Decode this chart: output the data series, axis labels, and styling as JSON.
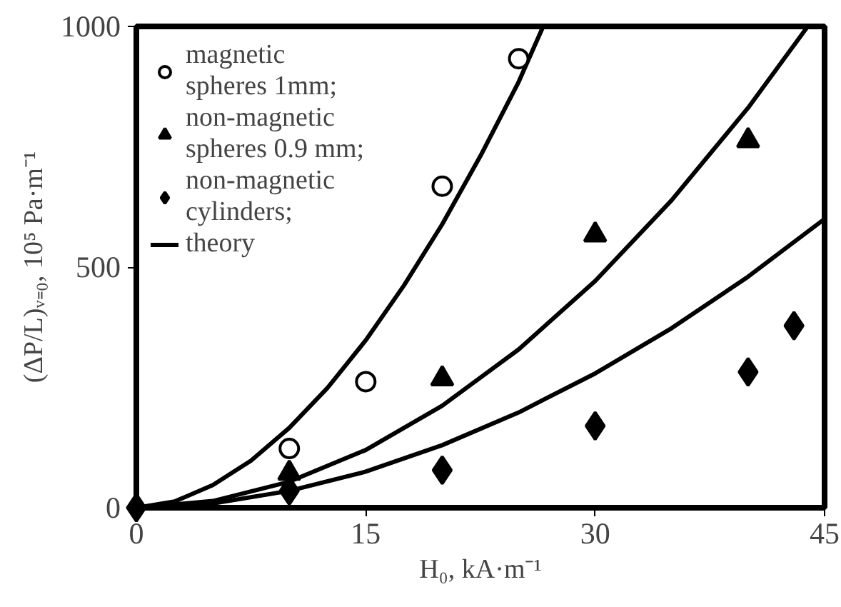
{
  "chart_data": {
    "type": "scatter",
    "xlabel": "H₀, kA·m⁻¹",
    "ylabel": "(ΔP/L)ᵥ₌₀, 10⁵ Pa·m⁻¹",
    "xlim": [
      0,
      45
    ],
    "ylim": [
      0,
      1000
    ],
    "xticks": [
      0,
      15,
      30,
      45
    ],
    "yticks": [
      0,
      500,
      1000
    ],
    "grid": false,
    "legend": "top left",
    "series": [
      {
        "name": "magnetic\nspheres 1mm;",
        "color": "#000000",
        "marker": "circle",
        "x": [
          10,
          15,
          20,
          25
        ],
        "values": [
          123,
          262,
          668,
          933
        ]
      },
      {
        "name": "non-magnetic\nspheres 0.9 mm;",
        "color": "#000000",
        "marker": "triangle",
        "x": [
          10,
          20,
          30,
          40
        ],
        "values": [
          72,
          268,
          567,
          763
        ]
      },
      {
        "name": "non-magnetic\ncylinders;",
        "color": "#000000",
        "marker": "diamond",
        "x": [
          0,
          10,
          20,
          30,
          40,
          43
        ],
        "values": [
          0,
          35,
          78,
          170,
          282,
          378
        ]
      },
      {
        "name": "theory",
        "type": "line",
        "color": "#000000",
        "marker": "none",
        "line_style": "solid",
        "x": [
          0,
          2.5,
          5,
          7.5,
          10,
          12.5,
          15,
          17.5,
          20,
          22.5,
          25,
          26.6
        ],
        "values": [
          0,
          13,
          47,
          98,
          166,
          249,
          348,
          462,
          589,
          731,
          885,
          1000
        ]
      },
      {
        "type": "line",
        "color": "#000000",
        "marker": "none",
        "line_style": "solid",
        "x": [
          0,
          5,
          10,
          15,
          20,
          25,
          30,
          35,
          40,
          43.9
        ],
        "values": [
          0,
          14,
          54,
          120,
          212,
          329,
          471,
          639,
          831,
          1000
        ]
      },
      {
        "type": "line",
        "color": "#000000",
        "marker": "none",
        "line_style": "solid",
        "x": [
          0,
          5,
          10,
          15,
          20,
          25,
          30,
          35,
          40,
          45
        ],
        "values": [
          0,
          9,
          35,
          75,
          130,
          198,
          279,
          373,
          480,
          600
        ]
      }
    ]
  }
}
